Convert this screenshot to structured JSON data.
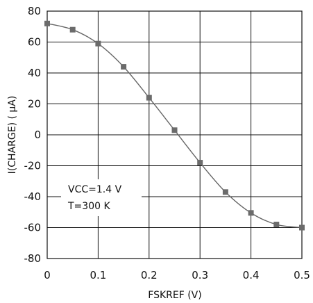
{
  "chart_data": {
    "type": "line",
    "x": [
      0,
      0.05,
      0.1,
      0.15,
      0.2,
      0.25,
      0.3,
      0.35,
      0.4,
      0.45,
      0.5
    ],
    "series": [
      {
        "values": [
          72,
          68,
          59,
          44,
          24,
          3,
          -18,
          -37,
          -50.5,
          -58,
          -60
        ]
      }
    ],
    "xlabel": "FSKREF (V)",
    "ylabel": "I(CHARGE) ( μA)",
    "xlim": [
      0,
      0.5
    ],
    "ylim": [
      -80,
      80
    ],
    "xticks": [
      "0",
      "0.1",
      "0.2",
      "0.3",
      "0.4",
      "0.5"
    ],
    "yticks": [
      "80",
      "60",
      "40",
      "20",
      "0",
      "-20",
      "-40",
      "-60",
      "-80"
    ],
    "xtick_values": [
      0,
      0.1,
      0.2,
      0.3,
      0.4,
      0.5
    ],
    "ytick_values": [
      80,
      60,
      40,
      20,
      0,
      -20,
      -40,
      -60,
      -80
    ],
    "grid": true,
    "annotations": [
      "VCC=1.4 V",
      "T=300 K"
    ],
    "colors": {
      "line": "#666666",
      "marker": "#6b6b6b",
      "grid": "#111111"
    }
  }
}
